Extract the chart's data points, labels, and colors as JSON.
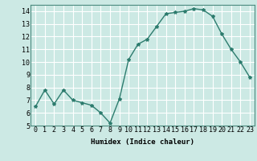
{
  "x": [
    0,
    1,
    2,
    3,
    4,
    5,
    6,
    7,
    8,
    9,
    10,
    11,
    12,
    13,
    14,
    15,
    16,
    17,
    18,
    19,
    20,
    21,
    22,
    23
  ],
  "y": [
    6.5,
    7.8,
    6.7,
    7.8,
    7.0,
    6.8,
    6.6,
    6.0,
    5.2,
    7.1,
    10.2,
    11.4,
    11.8,
    12.8,
    13.8,
    13.9,
    14.0,
    14.2,
    14.1,
    13.6,
    12.2,
    11.0,
    10.0,
    8.8
  ],
  "line_color": "#2d7c6e",
  "marker": "*",
  "marker_size": 3,
  "bg_color": "#cce9e4",
  "grid_color": "#ffffff",
  "xlabel": "Humidex (Indice chaleur)",
  "xlim": [
    -0.5,
    23.5
  ],
  "ylim": [
    5,
    14.5
  ],
  "yticks": [
    5,
    6,
    7,
    8,
    9,
    10,
    11,
    12,
    13,
    14
  ],
  "xtick_labels": [
    "0",
    "1",
    "2",
    "3",
    "4",
    "5",
    "6",
    "7",
    "8",
    "9",
    "10",
    "11",
    "12",
    "13",
    "14",
    "15",
    "16",
    "17",
    "18",
    "19",
    "20",
    "21",
    "22",
    "23"
  ],
  "xlabel_fontsize": 6.5,
  "tick_fontsize": 6,
  "linewidth": 1.0,
  "spine_color": "#4a8a7e"
}
